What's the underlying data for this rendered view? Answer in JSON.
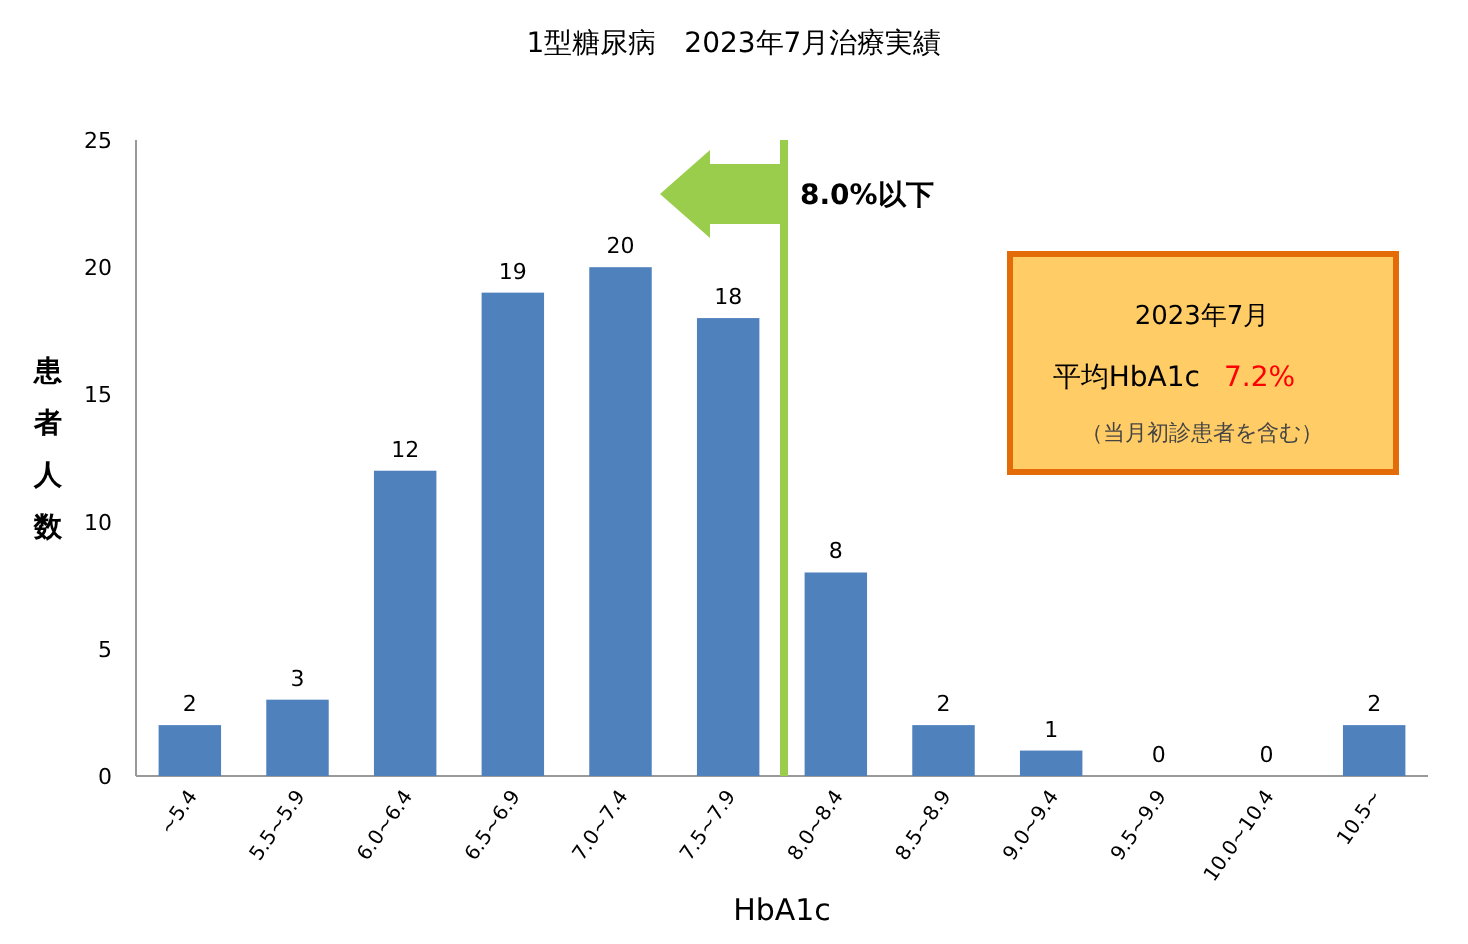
{
  "chart_data": {
    "type": "bar",
    "title": "1型糖尿病　2023年7月治療実績",
    "xlabel": "HbA1c",
    "ylabel": "患者人数",
    "categories": [
      "~5.4",
      "5.5~5.9",
      "6.0~6.4",
      "6.5~6.9",
      "7.0~7.4",
      "7.5~7.9",
      "8.0~8.4",
      "8.5~8.9",
      "9.0~9.4",
      "9.5~9.9",
      "10.0~10.4",
      "10.5~"
    ],
    "values": [
      2,
      3,
      12,
      19,
      20,
      18,
      8,
      2,
      1,
      0,
      0,
      2
    ],
    "color": "#4f81bd",
    "ylim": [
      0,
      25
    ],
    "yticks": [
      0,
      5,
      10,
      15,
      20,
      25
    ],
    "grid": false,
    "data_labels": true,
    "ref_lines": [
      {
        "axis": "x",
        "value": "8.0~8.4",
        "label": "8.0%以下",
        "color": "#9acd4c"
      }
    ],
    "annotations": [
      "2023年7月",
      "平均HbA1c",
      "7.2%",
      "（当月初診患者を含む）"
    ]
  }
}
